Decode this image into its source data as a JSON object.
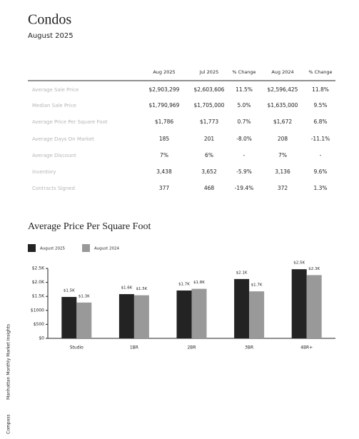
{
  "header": {
    "title": "Condos",
    "subtitle": "August 2025"
  },
  "table": {
    "columns": [
      "Aug 2025",
      "Jul 2025",
      "% Change",
      "Aug 2024",
      "% Change"
    ],
    "rows": [
      [
        "Average Sale Price",
        "$2,903,299",
        "$2,603,606",
        "11.5%",
        "$2,596,425",
        "11.8%"
      ],
      [
        "Median Sale Price",
        "$1,790,969",
        "$1,705,000",
        "5.0%",
        "$1,635,000",
        "9.5%"
      ],
      [
        "Average Price Per Square Foot",
        "$1,786",
        "$1,773",
        "0.7%",
        "$1,672",
        "6.8%"
      ],
      [
        "Average Days On Market",
        "185",
        "201",
        "-8.0%",
        "208",
        "-11.1%"
      ],
      [
        "Average Discount",
        "7%",
        "6%",
        "-",
        "7%",
        "-"
      ],
      [
        "Inventory",
        "3,438",
        "3,652",
        "-5.9%",
        "3,136",
        "9.6%"
      ],
      [
        "Contracts Signed",
        "377",
        "468",
        "-19.4%",
        "372",
        "1.3%"
      ]
    ]
  },
  "chart_data": {
    "type": "bar",
    "title": "Average Price Per Square Foot",
    "categories": [
      "Studio",
      "1BR",
      "2BR",
      "3BR",
      "4BR+"
    ],
    "series": [
      {
        "name": "August 2025",
        "color": "#232323",
        "values": [
          1480,
          1580,
          1710,
          2120,
          2470
        ],
        "value_labels": [
          "$1.5K",
          "$1.6K",
          "$1.7K",
          "$2.1K",
          "$2.5K"
        ]
      },
      {
        "name": "August 2024",
        "color": "#999999",
        "values": [
          1280,
          1540,
          1770,
          1680,
          2260
        ],
        "value_labels": [
          "$1.3K",
          "$1.5K",
          "$1.8K",
          "$1.7K",
          "$2.3K"
        ]
      }
    ],
    "ylim": [
      0,
      2500
    ],
    "yticks": [
      {
        "value": 0,
        "label": "$0"
      },
      {
        "value": 500,
        "label": "$500"
      },
      {
        "value": 1000,
        "label": "$1000"
      },
      {
        "value": 1500,
        "label": "$1.5K"
      },
      {
        "value": 2000,
        "label": "$2.0K"
      },
      {
        "value": 2500,
        "label": "$2.5K"
      }
    ],
    "legend": "top-left"
  },
  "sidebar": {
    "series_name": "Manhattan Monthly Market Insights",
    "brand": "Compass"
  }
}
